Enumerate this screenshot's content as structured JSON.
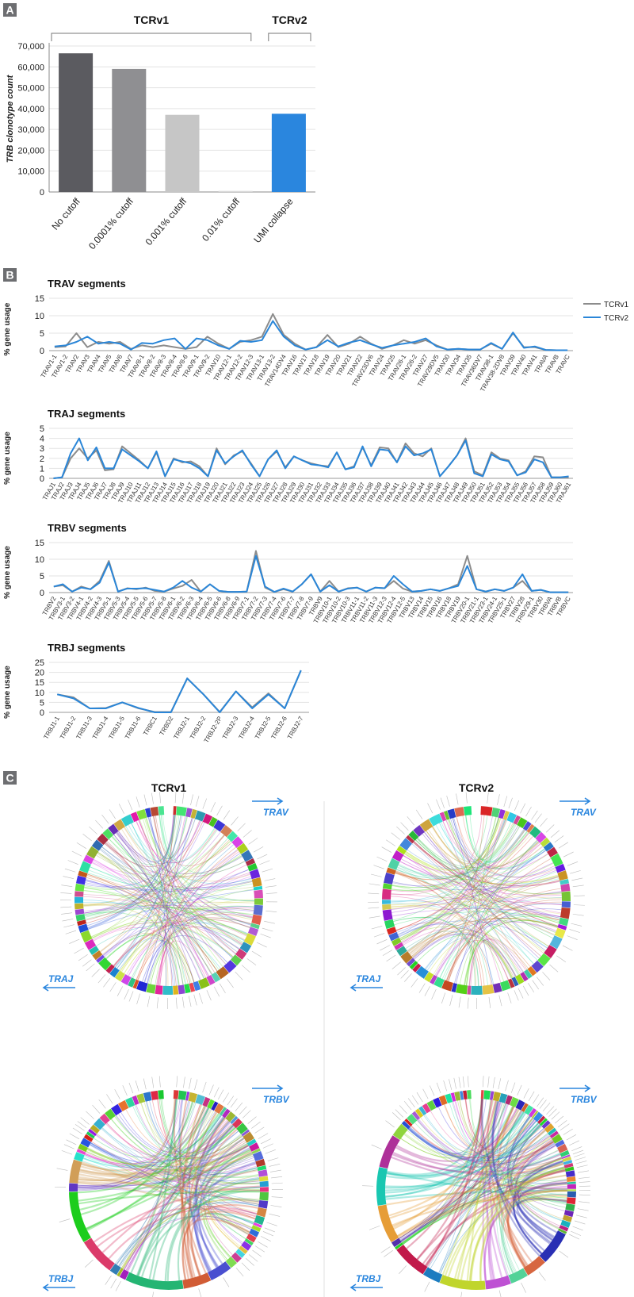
{
  "panels": [
    "A",
    "B",
    "C"
  ],
  "chart_data": [
    {
      "type": "bar",
      "y_label": "TRB clonotype count",
      "annotations": [
        "TCRv1",
        "TCRv2"
      ],
      "categories": [
        "No cutoff",
        "0.0001% cutoff",
        "0.001% cutoff",
        "0.01% cutoff",
        "UMI collapse"
      ],
      "values": [
        66500,
        59000,
        37000,
        500,
        37500
      ],
      "colors": [
        "#5b5b60",
        "#8f8f92",
        "#c6c6c6",
        "#d9d9d9",
        "#2a86de"
      ],
      "ylim": [
        0,
        70000
      ],
      "yticks": [
        0,
        {
          "value": 10000,
          "label": "10,000"
        },
        {
          "value": 20000,
          "label": "20,000"
        },
        {
          "value": 30000,
          "label": "30,000"
        },
        {
          "value": 40000,
          "label": "40,000"
        },
        {
          "value": 50000,
          "label": "50,000"
        },
        {
          "value": 60000,
          "label": "60,000"
        },
        {
          "value": 70000,
          "label": "70,000"
        }
      ],
      "grid": true
    },
    {
      "type": "line",
      "title": "TRAV segments",
      "y_label": "% gene usage",
      "legend": "upper right",
      "grid": true,
      "ylim": [
        0,
        15
      ],
      "yticks": [
        0,
        5,
        10,
        15
      ],
      "categories": [
        "TRAV1-1",
        "TRAV1-2",
        "TRAV2",
        "TRAV3",
        "TRAV4",
        "TRAV5",
        "TRAV6",
        "TRAV7",
        "TRAV8-1",
        "TRAV8-2",
        "TRAV8-3",
        "TRAV8-4",
        "TRAV8-6",
        "TRAV9-1",
        "TRAV9-2",
        "TRAV10",
        "TRAV12-1",
        "TRAV12-2",
        "TRAV12-3",
        "TRAV13-1",
        "TRAV13-2",
        "TRAV14DV4",
        "TRAV16",
        "TRAV17",
        "TRAV18",
        "TRAV19",
        "TRAV20",
        "TRAV21",
        "TRAV22",
        "TRAV23DV6",
        "TRAV24",
        "TRAV25",
        "TRAV26-1",
        "TRAV26-2",
        "TRAV27",
        "TRAV29DV5",
        "TRAV30",
        "TRAV34",
        "TRAV35",
        "TRAV36DV7",
        "TRAV38-1",
        "TRAV38-2DV8",
        "TRAV39",
        "TRAV40",
        "TRAV41",
        "TRAVA",
        "TRAVB",
        "TRAVC"
      ],
      "series": [
        {
          "name": "TCRv1",
          "color": "#8c8c8c",
          "values": [
            1,
            1.2,
            5,
            1,
            2.5,
            2,
            2.5,
            0.5,
            1.5,
            1,
            1.5,
            1,
            0.5,
            1,
            4,
            2,
            0.5,
            2.5,
            3,
            4,
            10.5,
            4.5,
            2,
            0.3,
            1,
            4.5,
            1,
            2,
            4,
            2,
            0.5,
            1.5,
            3,
            2,
            3,
            1.5,
            0.3,
            0.5,
            0.3,
            0.3,
            2,
            0.5,
            5,
            1,
            1,
            0.2,
            0.1,
            0.1
          ]
        },
        {
          "name": "TCRv2",
          "color": "#2a86d8",
          "values": [
            1.2,
            1.5,
            2.5,
            4,
            2,
            2.5,
            2,
            0.3,
            2.2,
            2,
            3,
            3.5,
            0.5,
            3.5,
            3,
            1.5,
            0.5,
            2.8,
            2.5,
            3,
            8.5,
            4,
            1.5,
            0.3,
            1,
            3,
            1.2,
            2.3,
            3,
            1.8,
            0.8,
            1.5,
            2,
            2.5,
            3.5,
            1.2,
            0.3,
            0.5,
            0.3,
            0.3,
            2.2,
            0.5,
            5.2,
            0.8,
            1.2,
            0.2,
            0.1,
            0.1
          ]
        }
      ]
    },
    {
      "type": "line",
      "title": "TRAJ segments",
      "y_label": "% gene usage",
      "grid": true,
      "ylim": [
        0,
        5
      ],
      "yticks": [
        0,
        1,
        2,
        3,
        4,
        5
      ],
      "categories": [
        "TRAJ1",
        "TRAJ2",
        "TRAJ3",
        "TRAJ4",
        "TRAJ5",
        "TRAJ6",
        "TRAJ7",
        "TRAJ8",
        "TRAJ9",
        "TRAJ10",
        "TRAJ11",
        "TRAJ12",
        "TRAJ13",
        "TRAJ14",
        "TRAJ15",
        "TRAJ16",
        "TRAJ17",
        "TRAJ18",
        "TRAJ19",
        "TRAJ20",
        "TRAJ21",
        "TRAJ22",
        "TRAJ23",
        "TRAJ24",
        "TRAJ25",
        "TRAJ26",
        "TRAJ27",
        "TRAJ28",
        "TRAJ29",
        "TRAJ30",
        "TRAJ31",
        "TRAJ32",
        "TRAJ33",
        "TRAJ34",
        "TRAJ35",
        "TRAJ36",
        "TRAJ37",
        "TRAJ38",
        "TRAJ39",
        "TRAJ40",
        "TRAJ41",
        "TRAJ42",
        "TRAJ43",
        "TRAJ44",
        "TRAJ45",
        "TRAJ46",
        "TRAJ47",
        "TRAJ48",
        "TRAJ49",
        "TRAJ50",
        "TRAJ51",
        "TRAJ52",
        "TRAJ53",
        "TRAJ54",
        "TRAJ55",
        "TRAJ56",
        "TRAJ57",
        "TRAJ58",
        "TRAJ59",
        "TRAJ60",
        "TRAJ61"
      ],
      "series": [
        {
          "name": "TCRv1",
          "color": "#8c8c8c",
          "values": [
            0,
            0.1,
            2,
            3,
            2,
            2.8,
            0.8,
            0.9,
            3.2,
            2.5,
            1.8,
            1,
            2.6,
            0.2,
            2,
            1.6,
            1.7,
            1.2,
            0.2,
            3,
            1.4,
            2.3,
            2.7,
            1.5,
            0.2,
            1.9,
            2.7,
            1.1,
            2.2,
            1.8,
            1.5,
            1.3,
            1.2,
            2.6,
            0.9,
            1.2,
            3.1,
            1.3,
            3.1,
            3,
            1.6,
            3.5,
            2.5,
            2.2,
            3,
            0.2,
            1.2,
            2.3,
            4,
            0.7,
            0.3,
            2.6,
            2,
            1.8,
            0.3,
            0.7,
            2.2,
            2.1,
            0.1,
            0.1,
            0.1
          ]
        },
        {
          "name": "TCRv2",
          "color": "#2a86d8",
          "values": [
            0,
            0.1,
            2.5,
            4,
            1.8,
            3.1,
            1,
            1,
            2.9,
            2.3,
            1.7,
            1,
            2.7,
            0.2,
            1.9,
            1.7,
            1.5,
            1,
            0.2,
            2.8,
            1.5,
            2.2,
            2.8,
            1.4,
            0.2,
            1.9,
            2.8,
            1,
            2.2,
            1.8,
            1.4,
            1.3,
            1.1,
            2.6,
            0.9,
            1.1,
            3.2,
            1.2,
            2.9,
            2.8,
            1.6,
            3.2,
            2.3,
            2.5,
            2.9,
            0.2,
            1.2,
            2.3,
            3.8,
            0.5,
            0.2,
            2.4,
            1.9,
            1.7,
            0.3,
            0.6,
            1.9,
            1.6,
            0.1,
            0.1,
            0.2
          ]
        }
      ]
    },
    {
      "type": "line",
      "title": "TRBV segments",
      "y_label": "% gene usage",
      "grid": true,
      "ylim": [
        0,
        15
      ],
      "yticks": [
        0,
        5,
        10,
        15
      ],
      "categories": [
        "TRBV2",
        "TRBV3-1",
        "TRBV3-2",
        "TRBV4-1",
        "TRBV4-2",
        "TRBV4-3",
        "TRBV5-1",
        "TRBV5-3",
        "TRBV5-4",
        "TRBV5-5",
        "TRBV5-6",
        "TRBV5-7",
        "TRBV5-8",
        "TRBV6-1",
        "TRBV6-2",
        "TRBV6-3",
        "TRBV6-4",
        "TRBV6-5",
        "TRBV6-6",
        "TRBV6-8",
        "TRBV6-9",
        "TRBV7-1",
        "TRBV7-2",
        "TRBV7-3",
        "TRBV7-4",
        "TRBV7-6",
        "TRBV7-7",
        "TRBV7-8",
        "TRBV7-9",
        "TRBV9",
        "TRBV10-1",
        "TRBV10-2",
        "TRBV10-3",
        "TRBV11-1",
        "TRBV11-2",
        "TRBV11-3",
        "TRBV12-3",
        "TRBV12-4",
        "TRBV12-5",
        "TRBV13",
        "TRBV14",
        "TRBV15",
        "TRBV16",
        "TRBV18",
        "TRBV19",
        "TRBV20-1",
        "TRBV21-1",
        "TRBV23-1",
        "TRBV24-1",
        "TRBV25-1",
        "TRBV27",
        "TRBV28",
        "TRBV29-1",
        "TRBV30",
        "TRBVA",
        "TRBVB",
        "TRBVC"
      ],
      "series": [
        {
          "name": "TCRv1",
          "color": "#8c8c8c",
          "values": [
            1.8,
            2.2,
            0.3,
            1.8,
            1,
            3.5,
            9.5,
            0.3,
            1.3,
            1,
            1.5,
            0.5,
            0.3,
            1.2,
            2,
            3.8,
            0.3,
            2.5,
            0.5,
            0.2,
            0.2,
            0.3,
            12.5,
            1.5,
            0.2,
            1,
            0.3,
            2.5,
            5.5,
            0.3,
            3.5,
            0.3,
            1.3,
            1.5,
            0.3,
            1.5,
            1.3,
            3.5,
            1.2,
            0.3,
            0.5,
            1,
            0.5,
            1.3,
            2.5,
            11,
            1,
            0.3,
            1,
            0.5,
            1.5,
            3.5,
            0.5,
            0.8,
            0.1,
            0.1,
            0.1
          ]
        },
        {
          "name": "TCRv2",
          "color": "#2a86d8",
          "values": [
            1.8,
            2.5,
            0.3,
            1.5,
            1,
            3,
            9,
            0.3,
            1.2,
            1.2,
            1.3,
            0.8,
            0.3,
            1.5,
            3.5,
            1.5,
            0.3,
            2.5,
            0.5,
            0.2,
            0.2,
            0.3,
            11,
            1.8,
            0.2,
            1.2,
            0.3,
            2.5,
            5.5,
            0.3,
            2.2,
            0.3,
            1.2,
            1.5,
            0.3,
            1.5,
            1.3,
            5,
            2.5,
            0.3,
            0.5,
            1,
            0.5,
            1.3,
            2,
            8,
            1,
            0.3,
            1,
            0.5,
            1.5,
            5.5,
            0.5,
            0.8,
            0.1,
            0.1,
            0.1
          ]
        }
      ]
    },
    {
      "type": "line",
      "title": "TRBJ segments",
      "y_label": "% gene usage",
      "grid": true,
      "ylim": [
        0,
        25
      ],
      "yticks": [
        0,
        5,
        10,
        15,
        20,
        25
      ],
      "categories": [
        "TRBJ1-1",
        "TRBJ1-2",
        "TRBJ1-3",
        "TRBJ1-4",
        "TRBJ1-5",
        "TRBJ1-6",
        "TRBC1",
        "TRBD2",
        "TRBJ2-1",
        "TRBJ2-2",
        "TRBJ2-2P",
        "TRBJ2-3",
        "TRBJ2-4",
        "TRBJ2-5",
        "TRBJ2-6",
        "TRBJ2-7"
      ],
      "series": [
        {
          "name": "TCRv1",
          "color": "#8c8c8c",
          "values": [
            9,
            7.5,
            2,
            2.2,
            5,
            2,
            0.2,
            0.2,
            17,
            9,
            0.2,
            10.5,
            2.5,
            9.5,
            2,
            21
          ]
        },
        {
          "name": "TCRv2",
          "color": "#2a86d8",
          "values": [
            9,
            7,
            2,
            2,
            5,
            2.2,
            0,
            0,
            17,
            9,
            0,
            10.5,
            2,
            9,
            2,
            21
          ]
        }
      ]
    }
  ],
  "panel_c": {
    "columns": [
      {
        "title": "TCRv1",
        "alpha_v": "TRAV",
        "alpha_j": "TRAJ",
        "beta_v": "TRBV",
        "beta_j": "TRBJ"
      },
      {
        "title": "TCRv2",
        "alpha_v": "TRAV",
        "alpha_j": "TRAJ",
        "beta_v": "TRBV",
        "beta_j": "TRBJ"
      }
    ]
  }
}
